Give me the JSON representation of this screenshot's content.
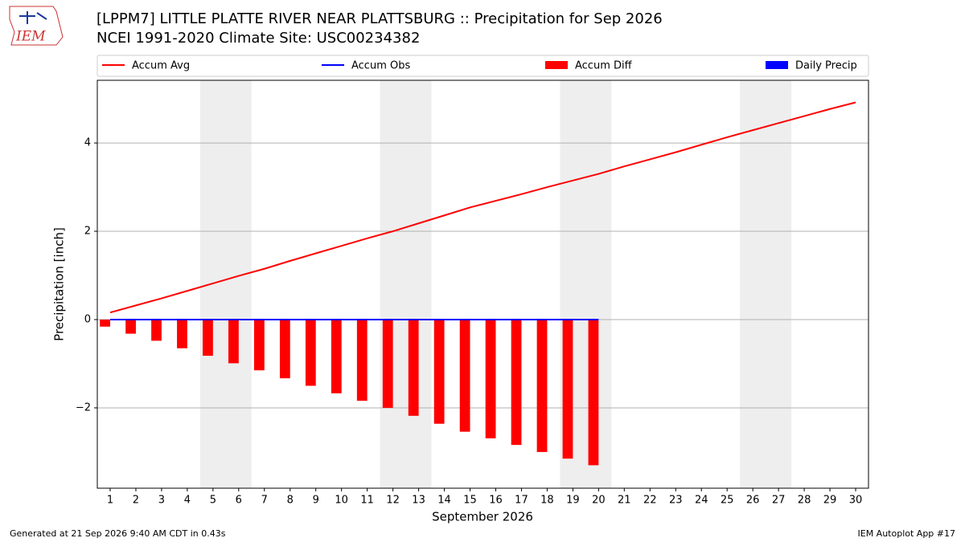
{
  "logo_text": "IEM",
  "chart_data": {
    "type": "bar_line",
    "title": "[LPPM7] LITTLE PLATTE RIVER NEAR PLATTSBURG :: Precipitation for Sep 2026",
    "subtitle": "NCEI 1991-2020 Climate Site: USC00234382",
    "xlabel": "September 2026",
    "ylabel": "Precipitation [inch]",
    "x": [
      1,
      2,
      3,
      4,
      5,
      6,
      7,
      8,
      9,
      10,
      11,
      12,
      13,
      14,
      15,
      16,
      17,
      18,
      19,
      20,
      21,
      22,
      23,
      24,
      25,
      26,
      27,
      28,
      29,
      30
    ],
    "xlim": [
      0.5,
      30.5
    ],
    "xticks": [
      1,
      2,
      3,
      4,
      5,
      6,
      7,
      8,
      9,
      10,
      11,
      12,
      13,
      14,
      15,
      16,
      17,
      18,
      19,
      20,
      21,
      22,
      23,
      24,
      25,
      26,
      27,
      28,
      29,
      30
    ],
    "ylim": [
      -3.82,
      5.42
    ],
    "yticks": [
      -2,
      0,
      2,
      4
    ],
    "yticklabels_minus": [
      {
        "value": -2,
        "label": "−2"
      }
    ],
    "grid": true,
    "series": [
      {
        "name": "Accum Avg",
        "color": "#ff0000",
        "kind": "line",
        "values": [
          0.16,
          0.32,
          0.48,
          0.65,
          0.82,
          0.99,
          1.15,
          1.33,
          1.5,
          1.67,
          1.84,
          2.0,
          2.18,
          2.36,
          2.54,
          2.69,
          2.84,
          3.0,
          3.15,
          3.3,
          3.47,
          3.63,
          3.79,
          3.96,
          4.13,
          4.29,
          4.45,
          4.61,
          4.77,
          4.92
        ]
      },
      {
        "name": "Accum Obs",
        "color": "#0000ff",
        "kind": "line",
        "values": [
          0,
          0,
          0,
          0,
          0,
          0,
          0,
          0,
          0,
          0,
          0,
          0,
          0,
          0,
          0,
          0,
          0,
          0,
          0,
          0,
          null,
          null,
          null,
          null,
          null,
          null,
          null,
          null,
          null,
          null
        ]
      },
      {
        "name": "Accum Diff",
        "color": "#ff0000",
        "kind": "bar",
        "offset": -0.4,
        "values": [
          -0.16,
          -0.32,
          -0.48,
          -0.65,
          -0.82,
          -0.99,
          -1.15,
          -1.33,
          -1.5,
          -1.67,
          -1.84,
          -2.0,
          -2.18,
          -2.36,
          -2.54,
          -2.69,
          -2.84,
          -3.0,
          -3.15,
          -3.3,
          null,
          null,
          null,
          null,
          null,
          null,
          null,
          null,
          null,
          null
        ]
      },
      {
        "name": "Daily Precip",
        "color": "#0000ff",
        "kind": "bar",
        "offset": 0,
        "values": [
          0,
          0,
          0,
          0,
          0,
          0,
          0,
          0,
          0,
          0,
          0,
          0,
          0,
          0,
          0,
          0,
          0,
          0,
          0,
          0,
          null,
          null,
          null,
          null,
          null,
          null,
          null,
          null,
          null,
          null
        ]
      }
    ],
    "footer_left": "Generated at 21 Sep 2026 9:40 AM CDT in 0.43s",
    "footer_right": "IEM Autoplot App #17"
  }
}
